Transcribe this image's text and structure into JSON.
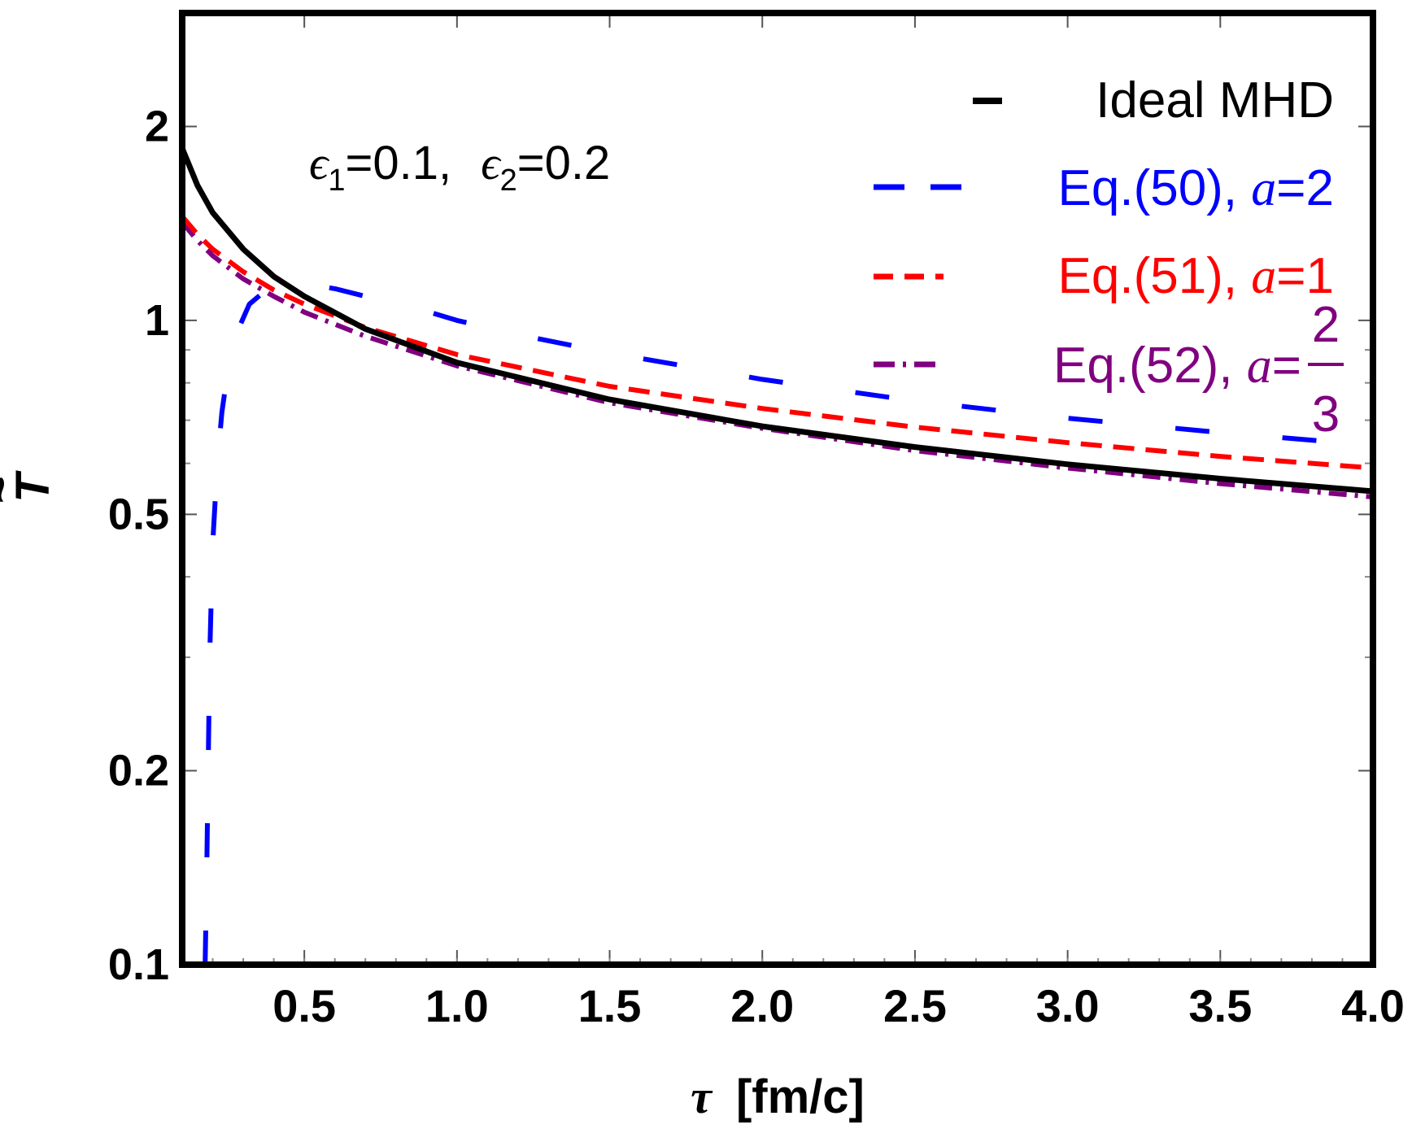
{
  "chart_data": {
    "type": "line",
    "xlabel_symbol": "τ",
    "xlabel_units": "[fm/c]",
    "ylabel": "T",
    "ylabel_accent": "~",
    "x_scale": "linear",
    "y_scale": "log",
    "xlim": [
      0.1,
      4.0
    ],
    "ylim": [
      0.1,
      3.0
    ],
    "x_ticks": [
      "0.5",
      "1.0",
      "1.5",
      "2.0",
      "2.5",
      "3.0",
      "3.5",
      "4.0"
    ],
    "y_ticks": [
      "0.1",
      "0.2",
      "0.5",
      "1",
      "2"
    ],
    "annotation": {
      "symbol": "ϵ",
      "sub1": "1",
      "value1": "=0.1,",
      "sub2": "2",
      "value2": "=0.2"
    },
    "legend_position": "top-right",
    "series": [
      {
        "name": "Ideal MHD",
        "style": "solid",
        "color": "#000000",
        "x": [
          0.1,
          0.15,
          0.2,
          0.3,
          0.4,
          0.5,
          0.7,
          1.0,
          1.5,
          2.0,
          2.5,
          3.0,
          3.5,
          4.0
        ],
        "y": [
          1.85,
          1.62,
          1.47,
          1.29,
          1.17,
          1.09,
          0.97,
          0.86,
          0.754,
          0.685,
          0.636,
          0.598,
          0.568,
          0.543
        ]
      },
      {
        "name": "Eq.(50), a=2",
        "style": "long-dash",
        "color": "#0000ff",
        "x": [
          0.175,
          0.18,
          0.185,
          0.19,
          0.2,
          0.215,
          0.23,
          0.25,
          0.28,
          0.32,
          0.38,
          0.45,
          0.5,
          0.6,
          0.7,
          0.85,
          1.0,
          1.25,
          1.5,
          2.0,
          2.5,
          3.0,
          3.5,
          4.0
        ],
        "y": [
          0.1,
          0.135,
          0.2,
          0.3,
          0.45,
          0.6,
          0.72,
          0.84,
          0.96,
          1.06,
          1.12,
          1.14,
          1.14,
          1.12,
          1.09,
          1.05,
          1.0,
          0.94,
          0.89,
          0.81,
          0.75,
          0.705,
          0.67,
          0.64
        ]
      },
      {
        "name": "Eq.(51), a=1",
        "style": "short-dash",
        "color": "#ff0000",
        "x": [
          0.1,
          0.15,
          0.2,
          0.3,
          0.4,
          0.5,
          0.7,
          1.0,
          1.5,
          2.0,
          2.5,
          3.0,
          3.5,
          4.0
        ],
        "y": [
          1.45,
          1.36,
          1.29,
          1.19,
          1.115,
          1.06,
          0.975,
          0.885,
          0.79,
          0.73,
          0.683,
          0.646,
          0.615,
          0.59
        ]
      },
      {
        "name": "Eq.(52), a=2/3",
        "style": "dash-dot",
        "color": "#800080",
        "x": [
          0.1,
          0.15,
          0.2,
          0.3,
          0.4,
          0.5,
          0.7,
          1.0,
          1.5,
          2.0,
          2.5,
          3.0,
          3.5,
          4.0
        ],
        "y": [
          1.42,
          1.33,
          1.26,
          1.16,
          1.09,
          1.03,
          0.945,
          0.85,
          0.745,
          0.68,
          0.628,
          0.59,
          0.558,
          0.532
        ]
      }
    ]
  },
  "legend": [
    {
      "label_main": "Ideal MHD",
      "param": ""
    },
    {
      "label_main": "Eq.(50), ",
      "param": "a",
      "value": "=2"
    },
    {
      "label_main": "Eq.(51), ",
      "param": "a",
      "value": "=1"
    },
    {
      "label_main": "Eq.(52), ",
      "param": "a",
      "value": "=",
      "frac_num": "2",
      "frac_den": "3"
    }
  ]
}
